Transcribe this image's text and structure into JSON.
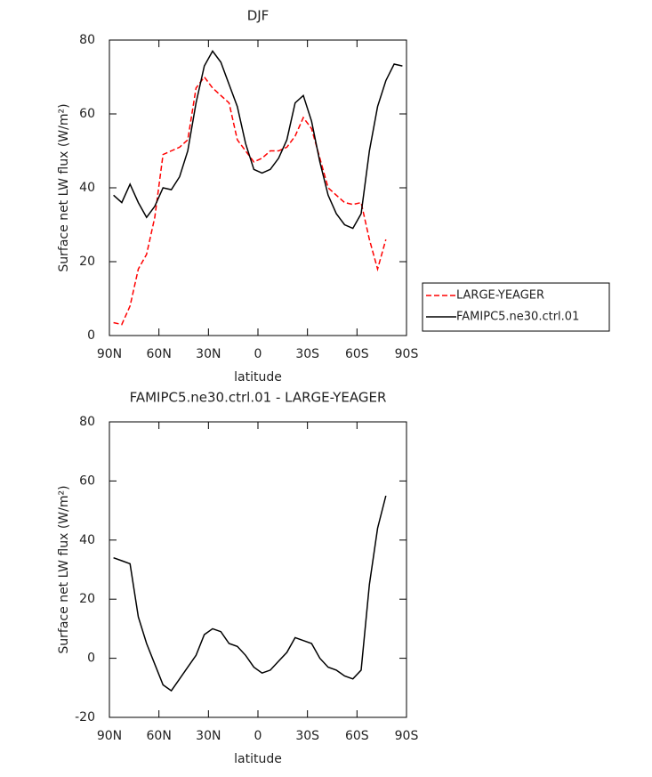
{
  "chart_data": [
    {
      "type": "line",
      "title": "DJF",
      "xlabel": "latitude",
      "ylabel": "Surface net LW flux (W/m²)",
      "x": [
        87.5,
        82.5,
        77.5,
        72.5,
        67.5,
        62.5,
        57.5,
        52.5,
        47.5,
        42.5,
        37.5,
        32.5,
        27.5,
        22.5,
        17.5,
        12.5,
        7.5,
        2.5,
        -2.5,
        -7.5,
        -12.5,
        -17.5,
        -22.5,
        -27.5,
        -32.5,
        -37.5,
        -42.5,
        -47.5,
        -52.5,
        -57.5,
        -62.5,
        -67.5,
        -72.5,
        -77.5,
        -82.5,
        -87.5
      ],
      "series": [
        {
          "name": "LARGE-YEAGER",
          "color": "#ff0000",
          "line_style": "dashed",
          "values": [
            3.5,
            3,
            8,
            18,
            22,
            32,
            49,
            50,
            51,
            53,
            67,
            70,
            67,
            65,
            63,
            53,
            50,
            47,
            48,
            50,
            50,
            51,
            54,
            59,
            56,
            48,
            40,
            38,
            36,
            35.5,
            36,
            26,
            18,
            26,
            null,
            null
          ]
        },
        {
          "name": "FAMIPC5.ne30.ctrl.01",
          "color": "#000000",
          "line_style": "solid",
          "values": [
            38,
            36,
            41,
            36,
            32,
            35,
            40,
            39.5,
            43,
            50,
            63,
            73,
            77,
            74,
            68,
            62,
            52,
            45,
            44,
            45,
            48,
            53,
            63,
            65,
            58,
            47,
            38,
            33,
            30,
            29,
            33,
            50,
            62,
            69,
            73.5,
            73
          ]
        }
      ],
      "xlim": [
        90,
        -90
      ],
      "xticks": [
        {
          "value": 90,
          "label": "90N"
        },
        {
          "value": 60,
          "label": "60N"
        },
        {
          "value": 30,
          "label": "30N"
        },
        0,
        {
          "value": -30,
          "label": "30S"
        },
        {
          "value": -60,
          "label": "60S"
        },
        {
          "value": -90,
          "label": "90S"
        }
      ],
      "ylim": [
        0,
        80
      ],
      "yticks": [
        0,
        20,
        40,
        60,
        80
      ],
      "legend": "right"
    },
    {
      "type": "line",
      "title": "FAMIPC5.ne30.ctrl.01 - LARGE-YEAGER",
      "xlabel": "latitude",
      "ylabel": "Surface net LW flux (W/m²)",
      "x": [
        87.5,
        82.5,
        77.5,
        72.5,
        67.5,
        62.5,
        57.5,
        52.5,
        47.5,
        42.5,
        37.5,
        32.5,
        27.5,
        22.5,
        17.5,
        12.5,
        7.5,
        2.5,
        -2.5,
        -7.5,
        -12.5,
        -17.5,
        -22.5,
        -27.5,
        -32.5,
        -37.5,
        -42.5,
        -47.5,
        -52.5,
        -57.5,
        -62.5,
        -67.5,
        -72.5,
        -77.5,
        -82.5,
        -87.5
      ],
      "series": [
        {
          "name": "FAMIPC5.ne30.ctrl.01 - LARGE-YEAGER",
          "color": "#000000",
          "line_style": "solid",
          "values": [
            34,
            33,
            32,
            14,
            5,
            -2,
            -9,
            -11,
            -7,
            -3,
            1,
            8,
            10,
            9,
            5,
            4,
            1,
            -3,
            -5,
            -4,
            -1,
            2,
            7,
            6,
            5,
            0,
            -3,
            -4,
            -6,
            -7,
            -4,
            25,
            44,
            55,
            null,
            null
          ]
        }
      ],
      "xlim": [
        90,
        -90
      ],
      "xticks": [
        {
          "value": 90,
          "label": "90N"
        },
        {
          "value": 60,
          "label": "60N"
        },
        {
          "value": 30,
          "label": "30N"
        },
        0,
        {
          "value": -30,
          "label": "30S"
        },
        {
          "value": -60,
          "label": "60S"
        },
        {
          "value": -90,
          "label": "90S"
        }
      ],
      "ylim": [
        -20,
        80
      ],
      "yticks": [
        -20,
        0,
        20,
        40,
        60,
        80
      ]
    }
  ]
}
